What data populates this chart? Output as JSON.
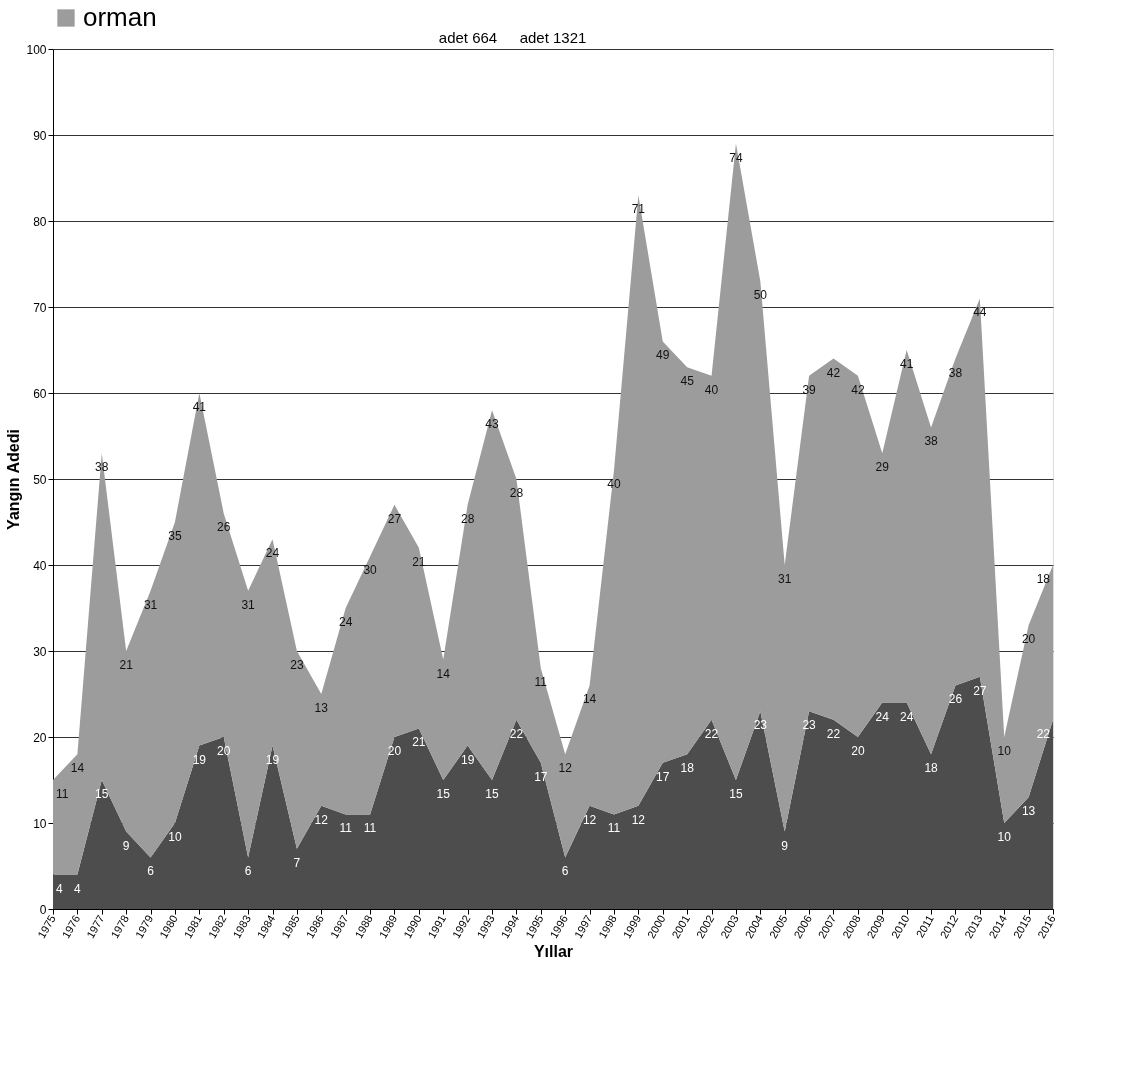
{
  "chart_data": {
    "type": "area",
    "stacked": true,
    "xlabel": "Yıllar",
    "ylabel": "Yangın Adedi",
    "categories": [
      "1975",
      "1976",
      "1977",
      "1978",
      "1979",
      "1980",
      "1981",
      "1982",
      "1983",
      "1984",
      "1985",
      "1986",
      "1987",
      "1988",
      "1989",
      "1990",
      "1991",
      "1992",
      "1993",
      "1994",
      "1995",
      "1996",
      "1997",
      "1998",
      "1999",
      "2000",
      "2001",
      "2002",
      "2003",
      "2004",
      "2005",
      "2006",
      "2007",
      "2008",
      "2009",
      "2010",
      "2011",
      "2012",
      "2013",
      "2014",
      "2015",
      "2016"
    ],
    "series": [
      {
        "color": "#4d4d4d",
        "values": [
          4,
          4,
          15,
          9,
          6,
          10,
          19,
          20,
          6,
          19,
          7,
          12,
          11,
          11,
          20,
          21,
          15,
          19,
          15,
          22,
          17,
          6,
          12,
          11,
          12,
          17,
          18,
          22,
          15,
          23,
          9,
          23,
          22,
          20,
          24,
          24,
          18,
          26,
          27,
          10,
          13,
          22
        ]
      },
      {
        "name": "orman",
        "color": "#9c9c9c",
        "values": [
          11,
          14,
          38,
          21,
          31,
          35,
          41,
          26,
          31,
          24,
          23,
          13,
          24,
          30,
          27,
          21,
          14,
          28,
          43,
          28,
          11,
          12,
          14,
          40,
          71,
          49,
          45,
          40,
          74,
          50,
          31,
          39,
          42,
          42,
          29,
          41,
          38,
          38,
          44,
          10,
          20,
          18
        ]
      }
    ],
    "ylim": [
      0,
      100
    ],
    "yticks": [
      0,
      10,
      20,
      30,
      40,
      50,
      60,
      70,
      80,
      90,
      100
    ],
    "grid": "y",
    "legend": "top",
    "data_labels": true,
    "annotations": [
      "adet 664",
      "adet 1321"
    ]
  }
}
